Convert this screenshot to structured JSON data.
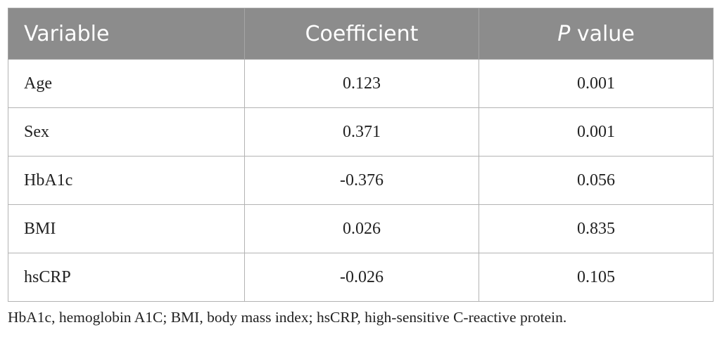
{
  "table": {
    "headers": {
      "variable": "Variable",
      "coefficient": "Coefficient",
      "p_value_letter": "P",
      "p_value_rest": " value"
    },
    "rows": [
      {
        "variable": "Age",
        "coefficient": "0.123",
        "p_value": "0.001"
      },
      {
        "variable": "Sex",
        "coefficient": "0.371",
        "p_value": "0.001"
      },
      {
        "variable": "HbA1c",
        "coefficient": "-0.376",
        "p_value": "0.056"
      },
      {
        "variable": "BMI",
        "coefficient": "0.026",
        "p_value": "0.835"
      },
      {
        "variable": "hsCRP",
        "coefficient": "-0.026",
        "p_value": "0.105"
      }
    ]
  },
  "footnote": "HbA1c, hemoglobin A1C; BMI, body mass index; hsCRP, high-sensitive C-reactive protein.",
  "colors": {
    "header_bg": "#8c8c8c",
    "header_text": "#ffffff",
    "grid": "#b3b3b3"
  }
}
